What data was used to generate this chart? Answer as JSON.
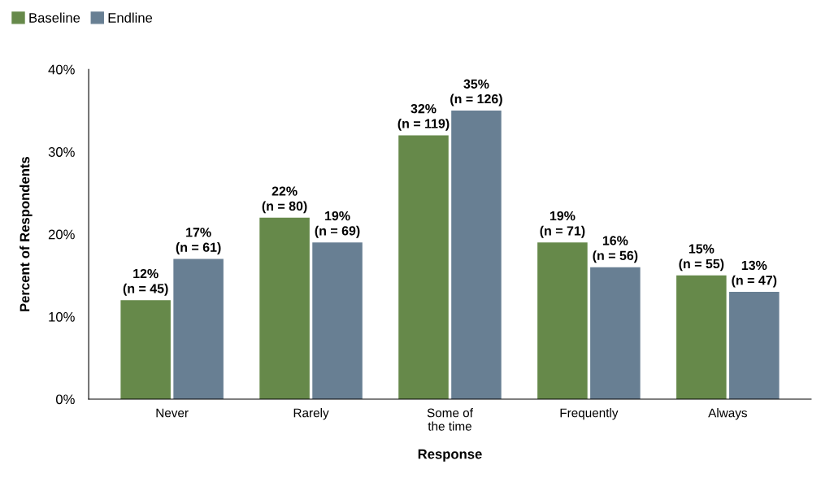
{
  "chart_data": {
    "type": "bar",
    "xlabel": "Response",
    "ylabel": "Percent of Respondents",
    "categories": [
      "Never",
      "Rarely",
      "Some of\nthe time",
      "Frequently",
      "Always"
    ],
    "series": [
      {
        "name": "Baseline",
        "color": "#66894a",
        "values": [
          12,
          22,
          32,
          19,
          15
        ],
        "value_labels": [
          "12%\n(n = 45)",
          "22%\n(n = 80)",
          "32%\n(n = 119)",
          "19%\n(n = 71)",
          "15%\n(n = 55)"
        ]
      },
      {
        "name": "Endline",
        "color": "#687f93",
        "values": [
          17,
          19,
          35,
          16,
          13
        ],
        "value_labels": [
          "17%\n(n = 61)",
          "19%\n(n = 69)",
          "35%\n(n = 126)",
          "16%\n(n = 56)",
          "13%\n(n = 47)"
        ]
      }
    ],
    "ylim": [
      0,
      40
    ],
    "yticks": [
      {
        "value": 0,
        "label": "0%"
      },
      {
        "value": 10,
        "label": "10%"
      },
      {
        "value": 20,
        "label": "20%"
      },
      {
        "value": 30,
        "label": "30%"
      },
      {
        "value": 40,
        "label": "40%"
      }
    ],
    "grid": false,
    "legend": "top left"
  }
}
